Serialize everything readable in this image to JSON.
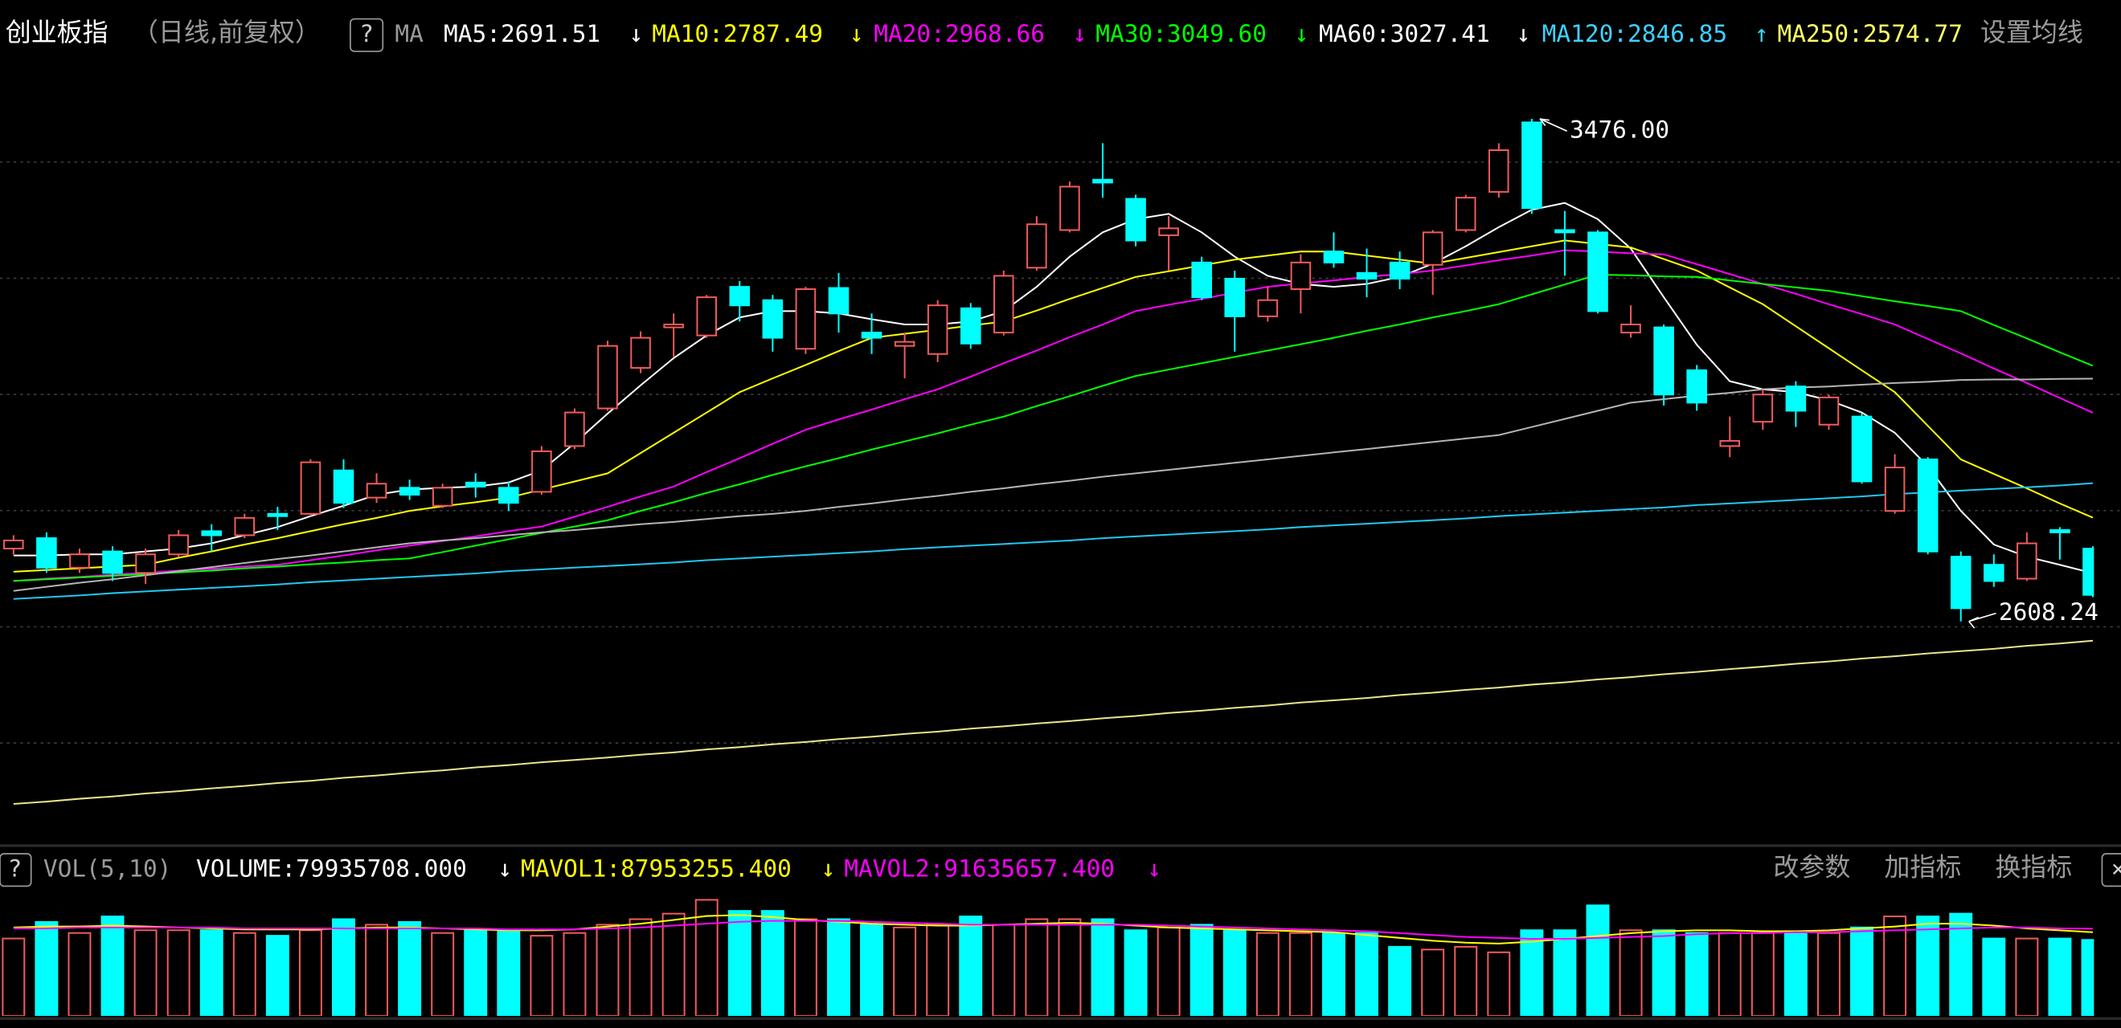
{
  "chart_data": [
    {
      "type": "candlestick",
      "title": "创业板指",
      "subtitle": "（日线,前复权）",
      "help_label": "?",
      "ma_label": "MA",
      "settings_label": "设置均线",
      "up_color": "#f05a5a",
      "down_color": "#00ffff",
      "text_color": "#ffffff",
      "muted_color": "#9a9a9a",
      "ylim": [
        2235,
        3588
      ],
      "categories": [
        null,
        null,
        null,
        null,
        null,
        null,
        null,
        null,
        null,
        null,
        null,
        null,
        null,
        null,
        null,
        null,
        null,
        null,
        null,
        null,
        null,
        null,
        null,
        null,
        null,
        null,
        null,
        null,
        null,
        null,
        null,
        null,
        null,
        null,
        null,
        null,
        null,
        null,
        null,
        null,
        null,
        null,
        null,
        null,
        null,
        null,
        null,
        null,
        null,
        null,
        null,
        null,
        null,
        null,
        null,
        null,
        null,
        null,
        null,
        null,
        null,
        null,
        null,
        null
      ],
      "open": [
        2734,
        2752,
        2701,
        2729,
        2692,
        2724,
        2764,
        2757,
        2794,
        2794,
        2869,
        2822,
        2839,
        2808,
        2848,
        2839,
        2832,
        2911,
        2976,
        3046,
        3116,
        3102,
        3186,
        3163,
        3079,
        3184,
        3107,
        3084,
        3070,
        3149,
        3107,
        3219,
        3284,
        3371,
        3338,
        3275,
        3228,
        3200,
        3135,
        3182,
        3247,
        3210,
        3228,
        3224,
        3284,
        3350,
        3470,
        3284,
        3280,
        3107,
        3116,
        3042,
        2911,
        2953,
        3014,
        2948,
        2962,
        2799,
        2888,
        2720,
        2706,
        2682,
        2766,
        2734
      ],
      "high": [
        2757,
        2762,
        2734,
        2738,
        2734,
        2766,
        2776,
        2794,
        2806,
        2888,
        2888,
        2864,
        2853,
        2846,
        2864,
        2850,
        2911,
        2976,
        3093,
        3109,
        3140,
        3172,
        3196,
        3172,
        3186,
        3210,
        3140,
        3107,
        3163,
        3158,
        3214,
        3308,
        3368,
        3434,
        3345,
        3308,
        3238,
        3214,
        3186,
        3242,
        3280,
        3252,
        3247,
        3284,
        3345,
        3434,
        3476.0,
        3317,
        3284,
        3154,
        3121,
        3051,
        2962,
        3009,
        3023,
        3000,
        2967,
        2897,
        2892,
        2729,
        2724,
        2762,
        2771,
        2738
      ],
      "low": [
        2724,
        2692,
        2692,
        2678,
        2673,
        2720,
        2729,
        2752,
        2766,
        2790,
        2804,
        2813,
        2818,
        2804,
        2822,
        2799,
        2827,
        2906,
        2972,
        3037,
        3065,
        3098,
        3126,
        3074,
        3070,
        3107,
        3070,
        3028,
        3056,
        3079,
        3102,
        3214,
        3280,
        3340,
        3256,
        3214,
        3163,
        3074,
        3126,
        3140,
        3219,
        3168,
        3182,
        3172,
        3280,
        3340,
        3312,
        3205,
        3140,
        3098,
        2981,
        2972,
        2892,
        2939,
        2944,
        2939,
        2846,
        2794,
        2724,
        2608.24,
        2668,
        2678,
        2715,
        2650
      ],
      "close": [
        2748,
        2701,
        2724,
        2692,
        2724,
        2757,
        2757,
        2787,
        2790,
        2883,
        2813,
        2846,
        2827,
        2839,
        2841,
        2813,
        2902,
        2969,
        3084,
        3098,
        3121,
        3168,
        3154,
        3098,
        3182,
        3140,
        3098,
        3091,
        3154,
        3088,
        3205,
        3294,
        3359,
        3366,
        3266,
        3287,
        3168,
        3135,
        3163,
        3228,
        3228,
        3200,
        3200,
        3280,
        3340,
        3422,
        3322,
        3280,
        3144,
        3121,
        3000,
        2986,
        2920,
        3000,
        2972,
        2995,
        2850,
        2874,
        2729,
        2631,
        2678,
        2743,
        2762,
        2654
      ],
      "annotations": [
        {
          "text": "3476.00"
        },
        {
          "text": "2608.24"
        }
      ],
      "lines": [
        {
          "label": "MA5:2691.51",
          "arrow": "↓",
          "color": "#ffffff",
          "label_color": "#ffffff",
          "values": [
            2722,
            2722,
            2724,
            2724,
            2729,
            2734,
            2743,
            2757,
            2771,
            2790,
            2808,
            2827,
            2836,
            2839,
            2841,
            2848,
            2869,
            2916,
            2967,
            3016,
            3063,
            3102,
            3133,
            3144,
            3144,
            3140,
            3130,
            3121,
            3121,
            3126,
            3144,
            3186,
            3238,
            3280,
            3303,
            3312,
            3280,
            3238,
            3205,
            3191,
            3186,
            3191,
            3203,
            3226,
            3256,
            3289,
            3319,
            3331,
            3303,
            3252,
            3168,
            3086,
            3023,
            3009,
            3004,
            2990,
            2969,
            2934,
            2876,
            2799,
            2741,
            2720,
            2706,
            2691.51
          ]
        },
        {
          "label": "MA10:2787.49",
          "arrow": "↓",
          "color": "#ffff00",
          "label_color": "#ffff00",
          "values": [
            2694,
            2697,
            2700,
            2703,
            2706,
            2718,
            2729,
            2741,
            2752,
            2764,
            2776,
            2787,
            2799,
            2807,
            2814,
            2822,
            2836,
            2850,
            2864,
            2899,
            2934,
            2969,
            3004,
            3028,
            3051,
            3075,
            3098,
            3105,
            3112,
            3119,
            3126,
            3145,
            3165,
            3184,
            3203,
            3213,
            3223,
            3233,
            3240,
            3247,
            3247,
            3240,
            3233,
            3226,
            3236,
            3246,
            3256,
            3266,
            3260,
            3254,
            3234,
            3214,
            3185,
            3156,
            3118,
            3080,
            3042,
            3004,
            2946,
            2888,
            2863,
            2838,
            2812,
            2787.49
          ]
        },
        {
          "label": "MA20:2968.66",
          "arrow": "↓",
          "color": "#ff00ff",
          "label_color": "#ff00ff",
          "values": [
            2678,
            2682,
            2685,
            2689,
            2692,
            2696,
            2699,
            2703,
            2706,
            2714,
            2722,
            2731,
            2739,
            2747,
            2755,
            2764,
            2772,
            2789,
            2806,
            2824,
            2841,
            2866,
            2890,
            2915,
            2939,
            2957,
            2974,
            2992,
            3009,
            3031,
            3054,
            3076,
            3099,
            3121,
            3144,
            3155,
            3165,
            3176,
            3186,
            3192,
            3197,
            3203,
            3208,
            3214,
            3223,
            3232,
            3240,
            3249,
            3247,
            3244,
            3242,
            3225,
            3208,
            3191,
            3174,
            3156,
            3139,
            3121,
            3096,
            3071,
            3045,
            3020,
            2994,
            2968.66
          ]
        },
        {
          "label": "MA30:3049.60",
          "arrow": "↓",
          "color": "#00ff00",
          "label_color": "#00ff00",
          "values": [
            2678,
            2681,
            2684,
            2687,
            2690,
            2693,
            2696,
            2700,
            2703,
            2707,
            2710,
            2714,
            2717,
            2728,
            2739,
            2750,
            2761,
            2772,
            2783,
            2799,
            2814,
            2830,
            2845,
            2861,
            2876,
            2890,
            2905,
            2919,
            2933,
            2948,
            2962,
            2980,
            2997,
            3015,
            3032,
            3043,
            3054,
            3065,
            3076,
            3087,
            3098,
            3110,
            3121,
            3133,
            3144,
            3156,
            3173,
            3190,
            3207,
            3206,
            3204,
            3203,
            3197,
            3191,
            3185,
            3179,
            3170,
            3161,
            3153,
            3144,
            3120,
            3097,
            3073,
            3049.6
          ]
        },
        {
          "label": "MA60:3027.41",
          "arrow": "↓",
          "color": "#b4b4b4",
          "label_color": "#ffffff",
          "values": [
            2661,
            2668,
            2675,
            2681,
            2688,
            2695,
            2702,
            2709,
            2716,
            2722,
            2729,
            2736,
            2743,
            2748,
            2752,
            2757,
            2762,
            2766,
            2771,
            2776,
            2780,
            2785,
            2790,
            2794,
            2799,
            2806,
            2812,
            2819,
            2825,
            2832,
            2838,
            2845,
            2851,
            2858,
            2864,
            2870,
            2876,
            2882,
            2888,
            2894,
            2900,
            2906,
            2912,
            2918,
            2924,
            2930,
            2944,
            2958,
            2972,
            2986,
            2992,
            2998,
            3003,
            3009,
            3012,
            3014,
            3017,
            3020,
            3022,
            3025,
            3026,
            3026,
            3027,
            3027.41
          ]
        },
        {
          "label": "MA120:2846.85",
          "arrow": "↑",
          "color": "#1ec8f0",
          "label_color": "#40d0ff",
          "values": [
            2647,
            2650,
            2653,
            2657,
            2660,
            2663,
            2666,
            2669,
            2672,
            2676,
            2679,
            2682,
            2685,
            2688,
            2691,
            2695,
            2698,
            2701,
            2704,
            2707,
            2710,
            2714,
            2717,
            2720,
            2723,
            2726,
            2729,
            2733,
            2736,
            2739,
            2742,
            2745,
            2748,
            2752,
            2755,
            2758,
            2761,
            2764,
            2767,
            2771,
            2774,
            2777,
            2780,
            2783,
            2786,
            2790,
            2793,
            2796,
            2799,
            2802,
            2805,
            2809,
            2812,
            2815,
            2818,
            2821,
            2824,
            2828,
            2831,
            2834,
            2837,
            2840,
            2843,
            2846.85
          ]
        },
        {
          "label": "MA250:2574.77",
          "arrow": "",
          "color": "#e6e68c",
          "label_color": "#ffff66",
          "values": [
            2293,
            2297,
            2302,
            2306,
            2311,
            2315,
            2320,
            2324,
            2329,
            2333,
            2338,
            2342,
            2347,
            2351,
            2356,
            2360,
            2365,
            2369,
            2373,
            2378,
            2382,
            2387,
            2391,
            2396,
            2400,
            2405,
            2409,
            2414,
            2418,
            2423,
            2427,
            2432,
            2436,
            2441,
            2445,
            2450,
            2454,
            2459,
            2463,
            2468,
            2472,
            2476,
            2481,
            2485,
            2490,
            2494,
            2499,
            2503,
            2508,
            2512,
            2517,
            2521,
            2526,
            2530,
            2535,
            2539,
            2544,
            2548,
            2553,
            2557,
            2561,
            2566,
            2570,
            2574.77
          ]
        }
      ]
    },
    {
      "type": "bar",
      "title": "VOL(5,10)",
      "help_label": "?",
      "value_label": "VOLUME:79935708.000",
      "value_arrow": "↓",
      "buttons": [
        "改参数",
        "加指标",
        "换指标"
      ],
      "close_label": "×",
      "ylim": [
        0,
        130800000
      ],
      "values": [
        81390000,
        98830000,
        87200000,
        104640000,
        90110000,
        90110000,
        90110000,
        87200000,
        84300000,
        90110000,
        101740000,
        95920000,
        98830000,
        87200000,
        90110000,
        90110000,
        84300000,
        87200000,
        95920000,
        101740000,
        107550000,
        122090000,
        110460000,
        110460000,
        101740000,
        101740000,
        95920000,
        93020000,
        95920000,
        104640000,
        95920000,
        101740000,
        101740000,
        101740000,
        90110000,
        93020000,
        95920000,
        90110000,
        87200000,
        87200000,
        87200000,
        87200000,
        72670000,
        69760000,
        72670000,
        66860000,
        90110000,
        90110000,
        116270000,
        90110000,
        90110000,
        87200000,
        87200000,
        87200000,
        87200000,
        87200000,
        93020000,
        104640000,
        104640000,
        107550000,
        81390000,
        81390000,
        81390000,
        79935708
      ],
      "lines": [
        {
          "label": "MAVOL1:87953255.400",
          "arrow": "↓",
          "color": "#ffff00",
          "values": [
            93000000,
            94000000,
            94000000,
            95000000,
            94000000,
            93000000,
            92000000,
            91000000,
            91000000,
            91000000,
            92000000,
            93000000,
            93000000,
            92000000,
            91000000,
            90000000,
            90000000,
            91000000,
            94000000,
            97000000,
            101000000,
            105000000,
            106000000,
            104000000,
            101000000,
            99000000,
            97000000,
            96000000,
            95000000,
            95000000,
            96000000,
            97000000,
            98000000,
            97000000,
            95000000,
            93000000,
            92000000,
            91000000,
            90000000,
            89000000,
            88000000,
            85000000,
            82000000,
            79000000,
            77000000,
            76000000,
            78000000,
            81000000,
            84000000,
            87000000,
            89000000,
            90000000,
            90000000,
            89000000,
            89000000,
            90000000,
            92000000,
            94000000,
            97000000,
            97000000,
            95000000,
            92000000,
            90000000,
            87953255.4
          ]
        },
        {
          "label": "MAVOL2:91635657.400",
          "arrow": "↓",
          "color": "#ff00ff",
          "values": [
            92000000,
            92000000,
            93000000,
            93000000,
            93000000,
            93000000,
            93000000,
            92000000,
            92000000,
            92000000,
            92000000,
            92000000,
            92000000,
            92000000,
            92000000,
            91000000,
            91000000,
            91000000,
            92000000,
            93000000,
            95000000,
            97000000,
            99000000,
            100000000,
            100000000,
            100000000,
            99000000,
            98000000,
            97000000,
            96000000,
            96000000,
            96000000,
            96000000,
            96000000,
            96000000,
            95000000,
            94000000,
            93000000,
            92000000,
            91000000,
            90000000,
            89000000,
            87000000,
            85000000,
            83000000,
            82000000,
            81000000,
            81000000,
            82000000,
            83000000,
            84000000,
            86000000,
            87000000,
            87000000,
            88000000,
            88000000,
            89000000,
            90000000,
            91000000,
            92000000,
            93000000,
            93000000,
            92000000,
            91635657.4
          ]
        }
      ]
    }
  ]
}
